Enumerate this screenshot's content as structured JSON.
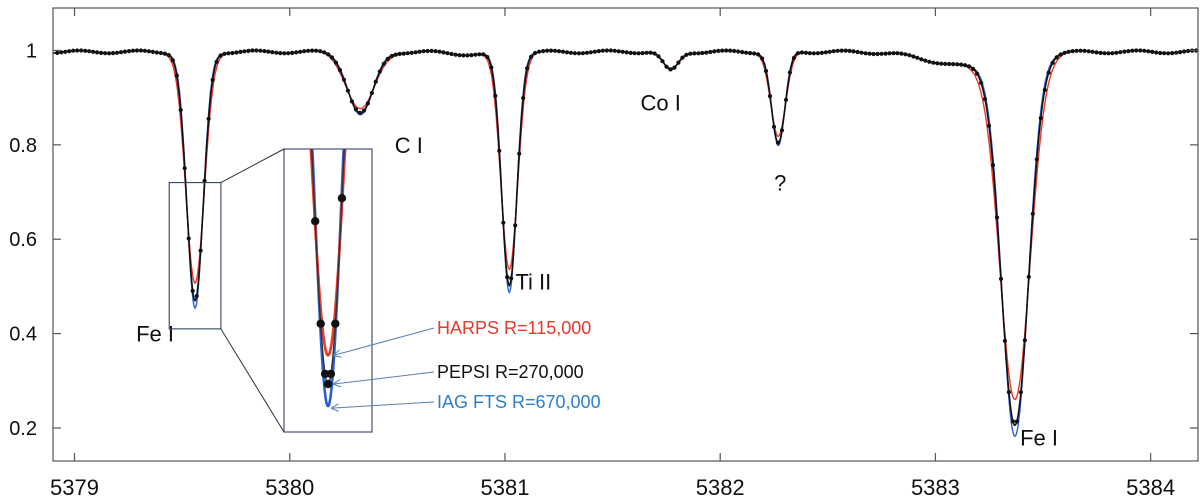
{
  "chart_data": {
    "type": "line",
    "title": "",
    "xlabel": "",
    "ylabel": "",
    "xlim": [
      5378.9,
      5384.22
    ],
    "ylim": [
      0.13,
      1.09
    ],
    "grid": false,
    "x_ticks": [
      "5379",
      "5380",
      "5381",
      "5382",
      "5383",
      "5384"
    ],
    "y_ticks": [
      "0.2",
      "0.4",
      "0.6",
      "0.8",
      "1"
    ],
    "lines": [
      {
        "center": 5379.56,
        "depth": 0.53,
        "width": 0.055,
        "label": "Fe I"
      },
      {
        "center": 5380.33,
        "depth": 0.13,
        "width": 0.085,
        "label": "C I"
      },
      {
        "center": 5381.02,
        "depth": 0.49,
        "width": 0.05,
        "label": "Ti II"
      },
      {
        "center": 5381.77,
        "depth": 0.04,
        "width": 0.05,
        "label": "Co I"
      },
      {
        "center": 5382.27,
        "depth": 0.195,
        "width": 0.045,
        "label": "?"
      },
      {
        "center": 5383.37,
        "depth": 0.78,
        "width": 0.09,
        "label": "Fe I"
      }
    ],
    "series": [
      {
        "name": "HARPS R=115,000",
        "color": "#e8382a"
      },
      {
        "name": "PEPSI  R=270,000",
        "color": "#111111"
      },
      {
        "name": "IAG FTS R=670,000",
        "color": "#2b5fd0"
      }
    ],
    "inset": {
      "xlim": [
        5379.44,
        5379.68
      ],
      "ylim": [
        0.44,
        0.72
      ],
      "minima": {
        "HARPS": 0.505,
        "PEPSI": 0.475,
        "IAG": 0.452
      }
    },
    "annotations": [
      {
        "text": "HARPS R=115,000",
        "color": "#e8382a"
      },
      {
        "text": "PEPSI  R=270,000",
        "color": "#111111"
      },
      {
        "text": "IAG FTS R=670,000",
        "color": "#2b7ed0"
      }
    ]
  }
}
